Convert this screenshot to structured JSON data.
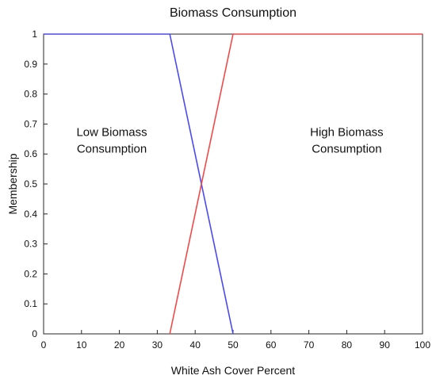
{
  "chart_data": {
    "type": "line",
    "title": "Biomass Consumption",
    "xlabel": "White Ash Cover Percent",
    "ylabel": "Membership",
    "xlim": [
      0,
      100
    ],
    "ylim": [
      0,
      1
    ],
    "xticks": [
      "0",
      "10",
      "20",
      "30",
      "40",
      "50",
      "60",
      "70",
      "80",
      "90",
      "100"
    ],
    "yticks": [
      "0",
      "0.1",
      "0.2",
      "0.3",
      "0.4",
      "0.5",
      "0.6",
      "0.7",
      "0.8",
      "0.9",
      "1"
    ],
    "grid": false,
    "series": [
      {
        "color": "#4a4af0",
        "points": [
          [
            0,
            1
          ],
          [
            33.3,
            1
          ],
          [
            50,
            0
          ]
        ]
      },
      {
        "color": "#f04a4a",
        "points": [
          [
            33.3,
            0
          ],
          [
            50,
            1
          ],
          [
            100,
            1
          ]
        ]
      }
    ],
    "annotations": [
      {
        "lines": [
          "Low Biomass",
          "Consumption"
        ],
        "x": 18,
        "y": 0.66
      },
      {
        "lines": [
          "High Biomass",
          "Consumption"
        ],
        "x": 80,
        "y": 0.66
      }
    ]
  }
}
